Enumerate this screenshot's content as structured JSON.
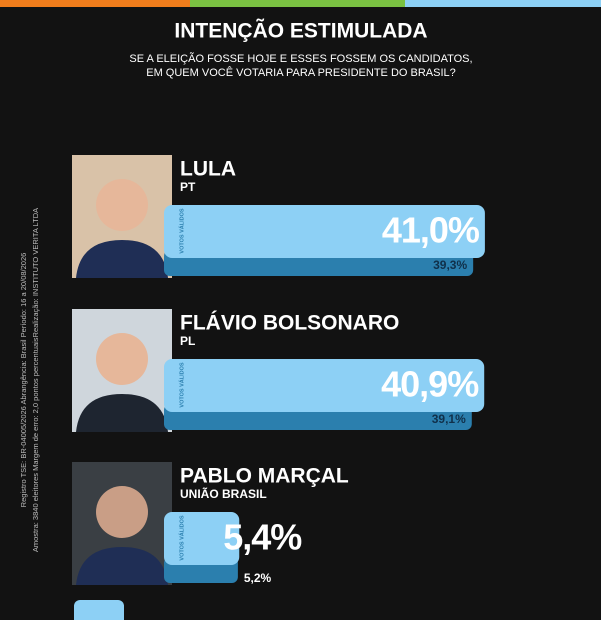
{
  "chart_data": {
    "type": "bar",
    "title": "INTENÇÃO ESTIMULADA",
    "subtitle": [
      "SE A ELEIÇÃO FOSSE HOJE E ESSES FOSSEM OS CANDIDATOS,",
      "EM QUEM VOCÊ VOTARIA PARA PRESIDENTE DO BRASIL?"
    ],
    "side_note": [
      "Registro TSE: BR-04005/2026 Abrangência: Brasil Período: 16 a 20/08/2026",
      "Amostra: 3840 eleitores Margem de erro: 2,0 pontos percentuaisRealização: INSTITUTO VERITA LTDA"
    ],
    "categories": [
      "LULA",
      "FLÁVIO BOLSONARO",
      "PABLO MARÇAL"
    ],
    "parties": [
      "PT",
      "PL",
      "UNIÃO BRASIL"
    ],
    "series": [
      {
        "name": "VOTOS VÁLIDOS",
        "color": "#8dd0f5",
        "values": [
          41.0,
          40.9,
          5.4
        ],
        "value_labels": [
          "41,0%",
          "40,9%",
          "5,4%"
        ]
      },
      {
        "color": "#2b7fae",
        "values": [
          39.3,
          39.1,
          5.2
        ],
        "value_labels": [
          "39,3%",
          "39,1%",
          "5,2%"
        ]
      }
    ]
  }
}
